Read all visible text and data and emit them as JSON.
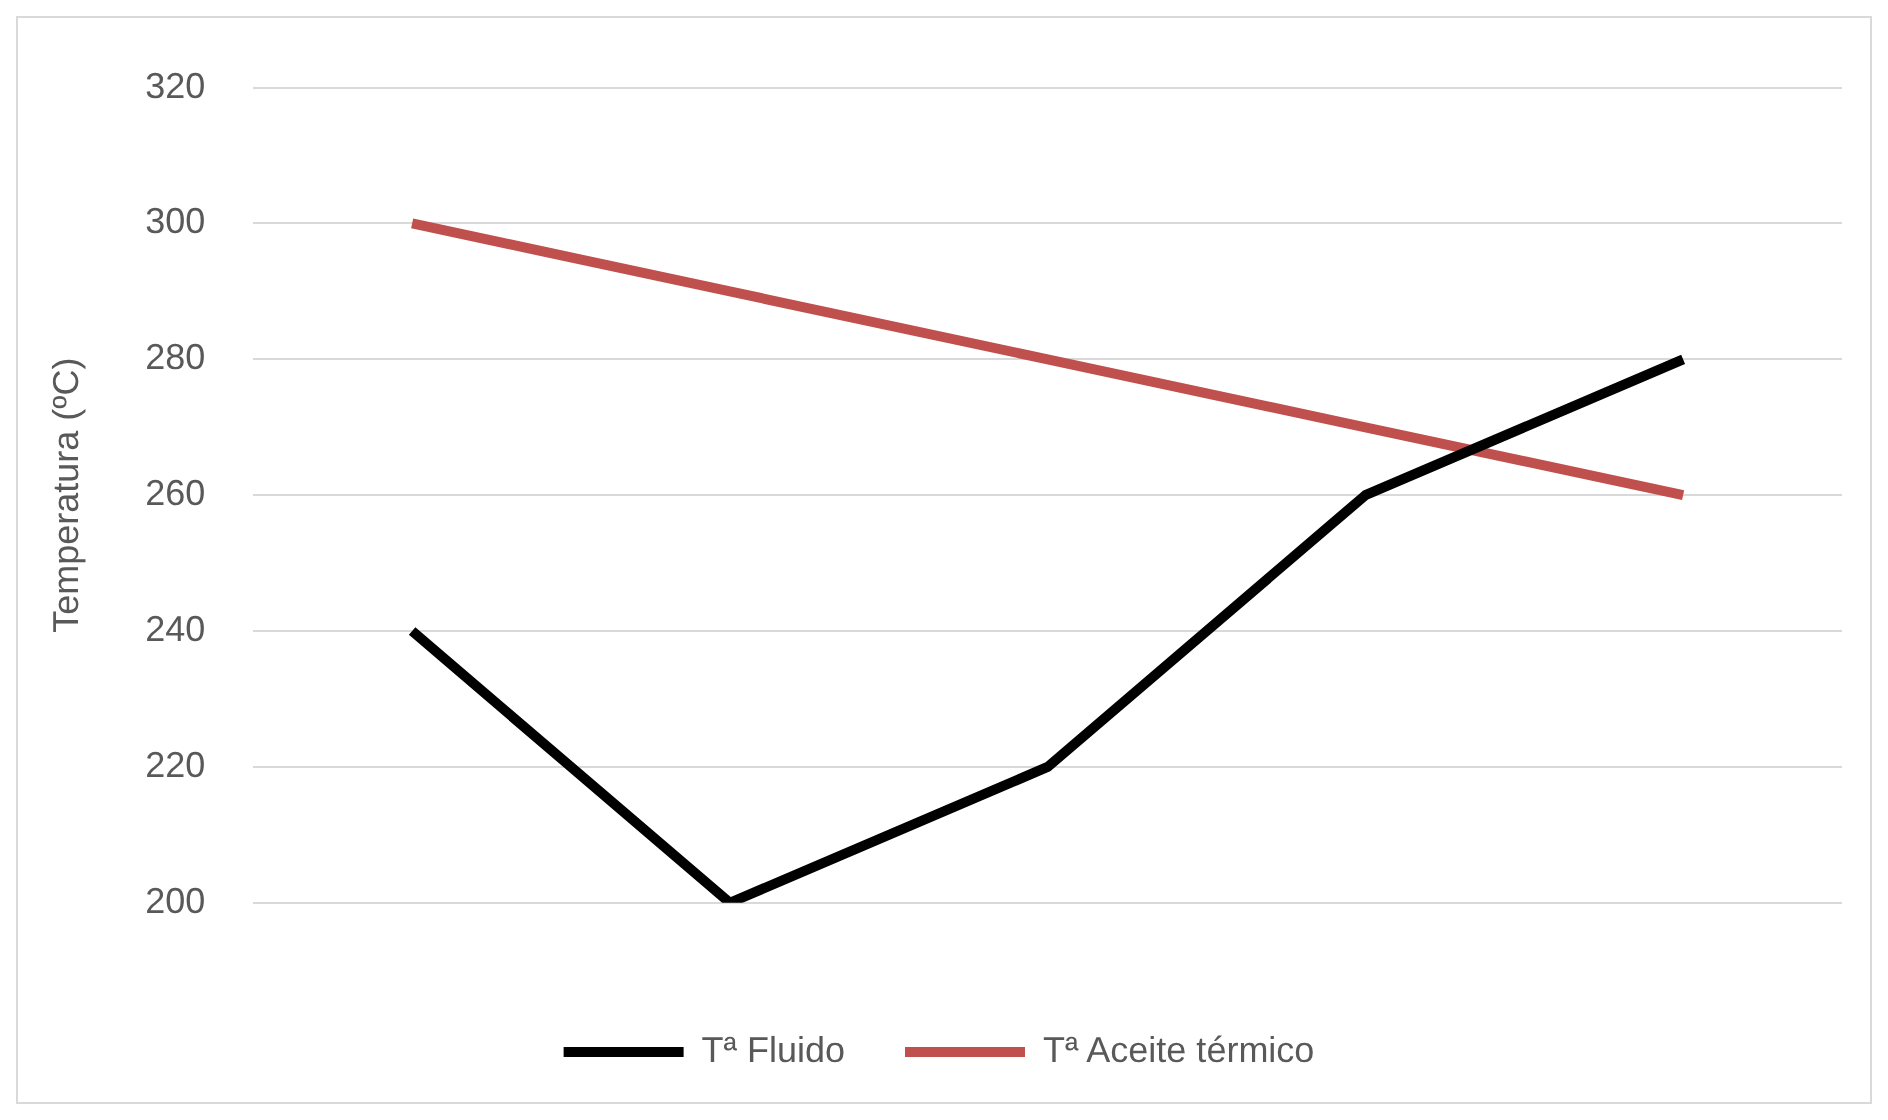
{
  "chart_data": {
    "type": "line",
    "ylabel": "Temperatura (ºC)",
    "categories": [
      null,
      null,
      null,
      null,
      null
    ],
    "series": [
      {
        "name": "Tª Fluido",
        "color": "#000000",
        "values": [
          240,
          200,
          220,
          260,
          280
        ]
      },
      {
        "name": "Tª Aceite térmico",
        "color": "#c0504d",
        "values": [
          300,
          290,
          280,
          270,
          260
        ]
      }
    ],
    "ylim": [
      200,
      320
    ],
    "yticks": [
      200,
      220,
      240,
      260,
      280,
      300,
      320
    ],
    "grid": "y",
    "legend": "bottom",
    "marker": "none",
    "line_style": "solid"
  }
}
